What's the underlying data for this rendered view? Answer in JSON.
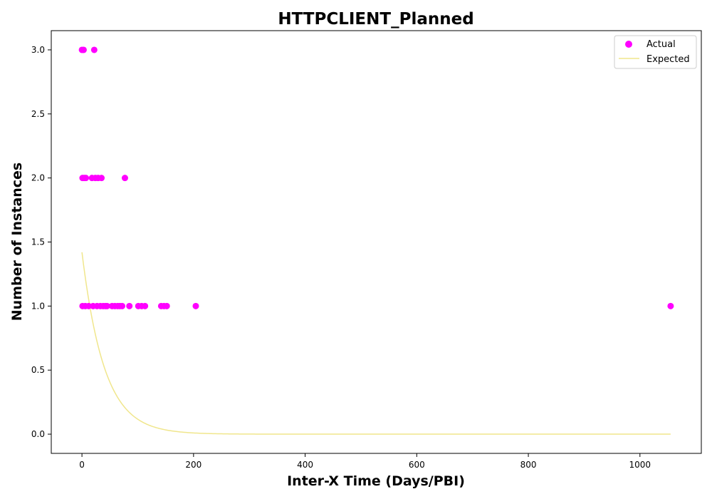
{
  "chart_data": {
    "type": "scatter",
    "title": "HTTPCLIENT_Planned",
    "xlabel": "Inter-X Time (Days/PBI)",
    "ylabel": "Number of Instances",
    "xlim": [
      -55,
      1110
    ],
    "ylim": [
      -0.15,
      3.15
    ],
    "xticks": [
      0,
      200,
      400,
      600,
      800,
      1000
    ],
    "xtick_labels": [
      "0",
      "200",
      "400",
      "600",
      "800",
      "1000"
    ],
    "yticks": [
      0.0,
      0.5,
      1.0,
      1.5,
      2.0,
      2.5,
      3.0
    ],
    "ytick_labels": [
      "0.0",
      "0.5",
      "1.0",
      "1.5",
      "2.0",
      "2.5",
      "3.0"
    ],
    "grid": false,
    "legend_position": "top-right",
    "series": [
      {
        "name": "Actual",
        "kind": "scatter",
        "color": "#ff00ff",
        "points": [
          [
            0,
            3
          ],
          [
            3,
            3
          ],
          [
            22,
            3
          ],
          [
            1,
            2
          ],
          [
            4,
            2
          ],
          [
            7,
            2
          ],
          [
            18,
            2
          ],
          [
            24,
            2
          ],
          [
            29,
            2
          ],
          [
            35,
            2
          ],
          [
            77,
            2
          ],
          [
            1,
            1
          ],
          [
            6,
            1
          ],
          [
            12,
            1
          ],
          [
            20,
            1
          ],
          [
            27,
            1
          ],
          [
            33,
            1
          ],
          [
            38,
            1
          ],
          [
            42,
            1
          ],
          [
            45,
            1
          ],
          [
            54,
            1
          ],
          [
            59,
            1
          ],
          [
            64,
            1
          ],
          [
            68,
            1
          ],
          [
            72,
            1
          ],
          [
            85,
            1
          ],
          [
            101,
            1
          ],
          [
            107,
            1
          ],
          [
            113,
            1
          ],
          [
            142,
            1
          ],
          [
            147,
            1
          ],
          [
            152,
            1
          ],
          [
            204,
            1
          ],
          [
            1055,
            1
          ]
        ]
      },
      {
        "name": "Expected",
        "kind": "line",
        "color": "#f0e68c",
        "function": "1.42 * exp(-x / 40)",
        "x_range": [
          0,
          1055
        ]
      }
    ]
  }
}
